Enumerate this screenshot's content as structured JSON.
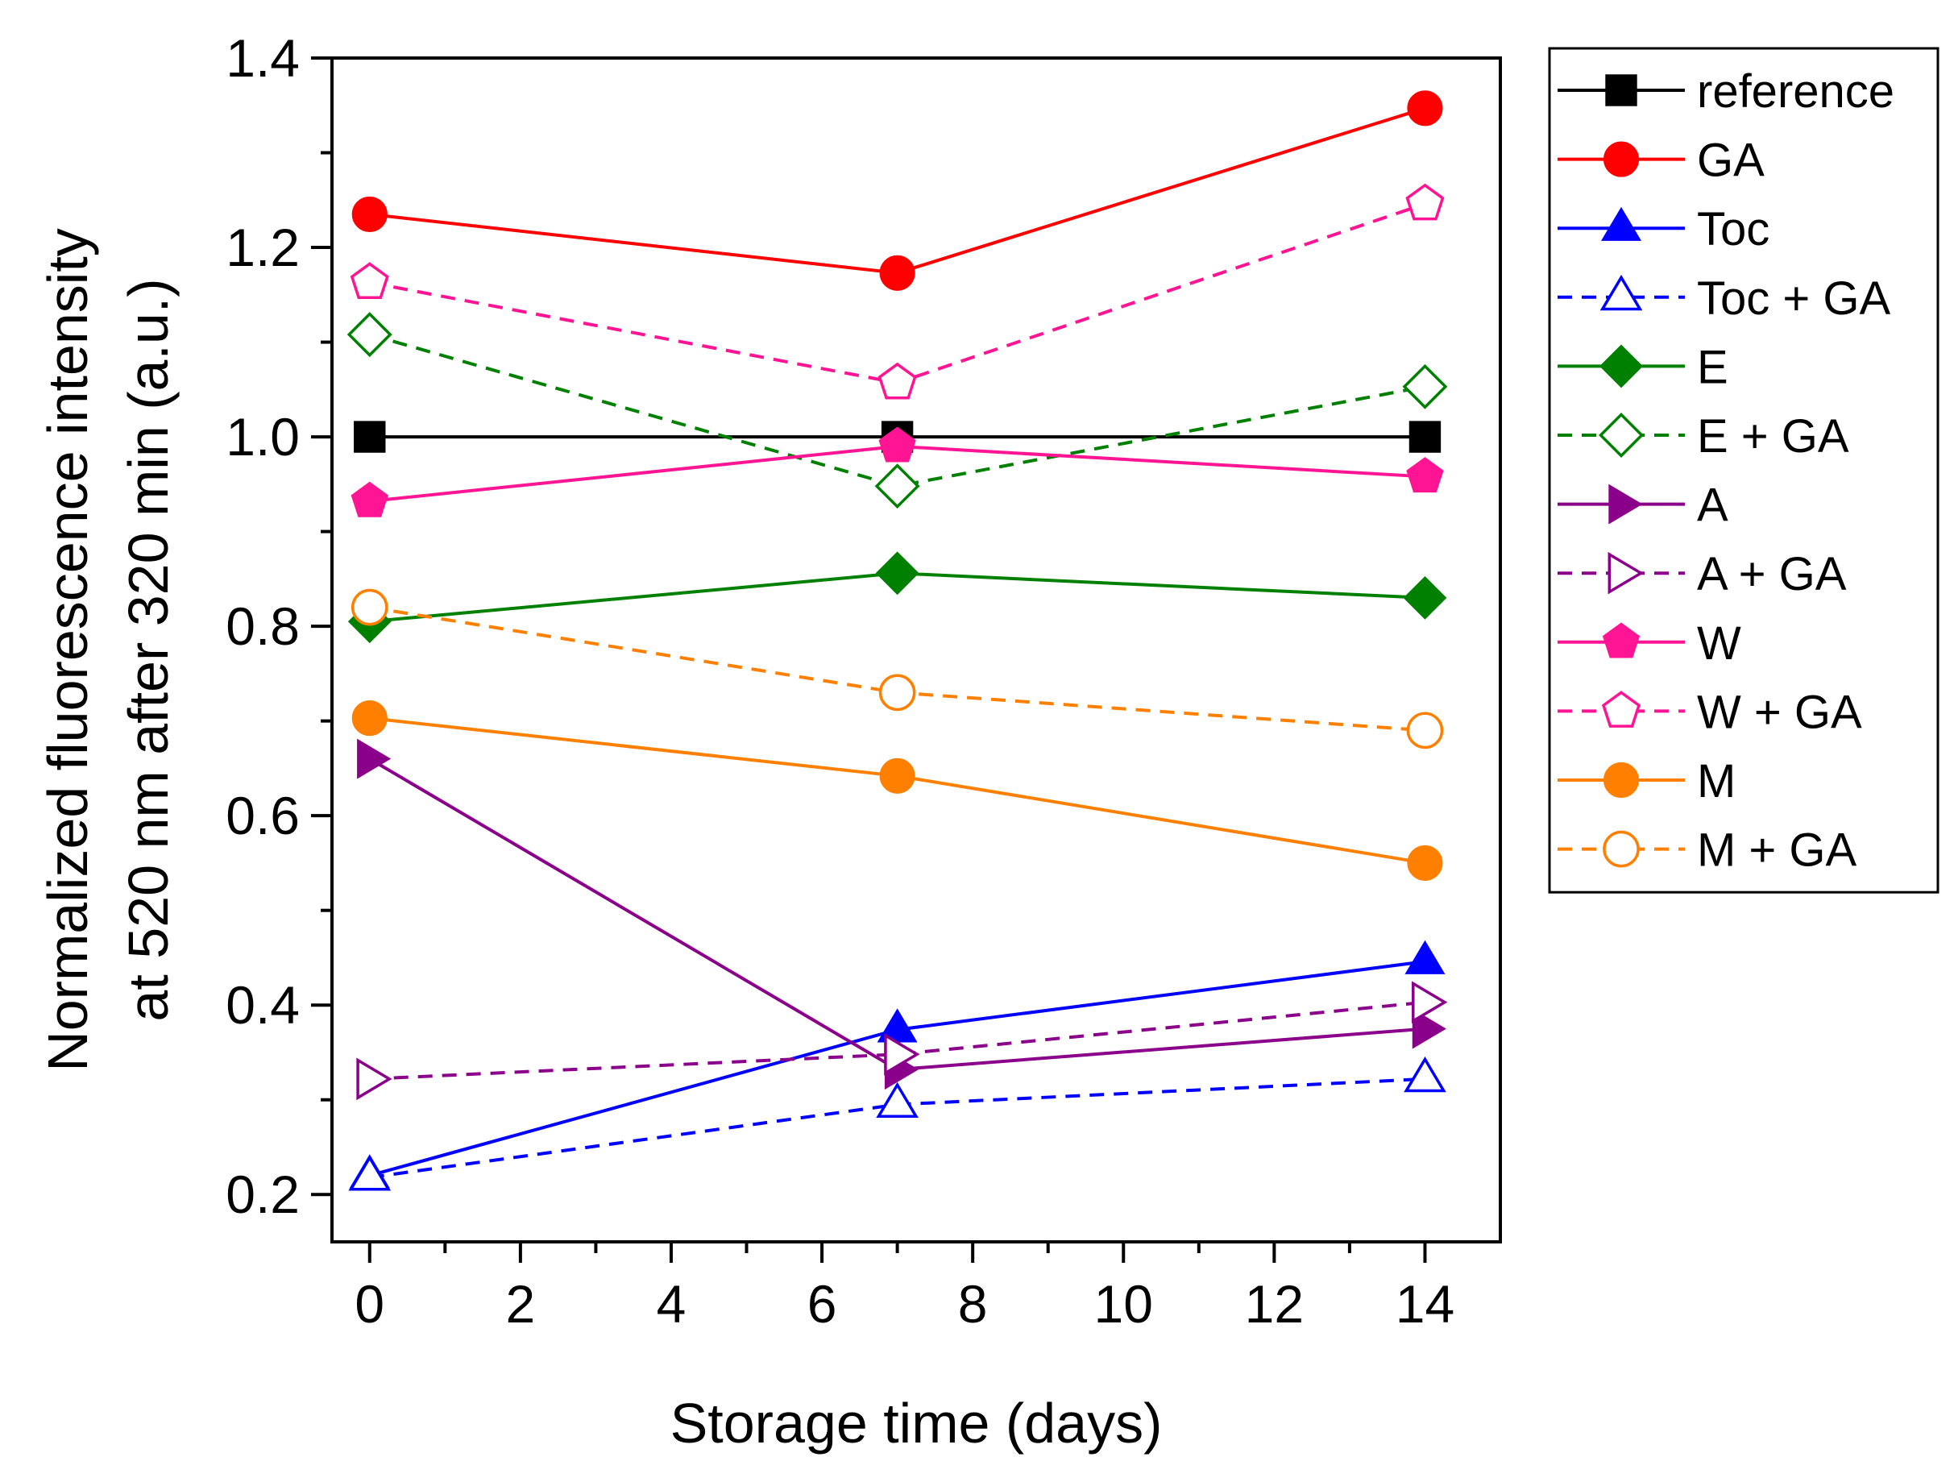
{
  "chart_data": {
    "type": "line",
    "title": "",
    "xlabel": "Storage time (days)",
    "ylabel_lines": [
      "Normalized fluorescence intensity",
      "at 520 nm after 320 min (a.u.)"
    ],
    "xlim": [
      -0.5,
      15
    ],
    "ylim": [
      0.15,
      1.4
    ],
    "xticks": [
      0,
      2,
      4,
      6,
      8,
      10,
      12,
      14
    ],
    "xtick_labels": [
      "0",
      "2",
      "4",
      "6",
      "8",
      "10",
      "12",
      "14"
    ],
    "yticks": [
      0.2,
      0.4,
      0.6,
      0.8,
      1.0,
      1.2,
      1.4
    ],
    "ytick_labels": [
      "0.2",
      "0.4",
      "0.6",
      "0.8",
      "1.0",
      "1.2",
      "1.4"
    ],
    "x": [
      0,
      7,
      14
    ],
    "legend_position": "outside-right",
    "series": [
      {
        "name": "reference",
        "color": "#000000",
        "marker": "square",
        "filled": true,
        "dashed": false,
        "values": [
          1.0,
          1.0,
          1.0
        ]
      },
      {
        "name": "GA",
        "color": "#ff0000",
        "marker": "circle",
        "filled": true,
        "dashed": false,
        "values": [
          1.235,
          1.173,
          1.347
        ]
      },
      {
        "name": "Toc",
        "color": "#0000ff",
        "marker": "triangle-up",
        "filled": true,
        "dashed": false,
        "values": [
          0.22,
          0.374,
          0.446
        ]
      },
      {
        "name": "Toc + GA",
        "color": "#0000ff",
        "marker": "triangle-up",
        "filled": false,
        "dashed": true,
        "values": [
          0.218,
          0.295,
          0.322
        ]
      },
      {
        "name": "E",
        "color": "#008000",
        "marker": "diamond",
        "filled": true,
        "dashed": false,
        "values": [
          0.805,
          0.856,
          0.83
        ]
      },
      {
        "name": "E + GA",
        "color": "#008000",
        "marker": "diamond",
        "filled": false,
        "dashed": true,
        "values": [
          1.108,
          0.948,
          1.053
        ]
      },
      {
        "name": "A",
        "color": "#8b008b",
        "marker": "triangle-right",
        "filled": true,
        "dashed": false,
        "values": [
          0.66,
          0.332,
          0.375
        ]
      },
      {
        "name": "A + GA",
        "color": "#8b008b",
        "marker": "triangle-right",
        "filled": false,
        "dashed": true,
        "values": [
          0.322,
          0.348,
          0.403
        ]
      },
      {
        "name": "W",
        "color": "#ff1493",
        "marker": "pentagon",
        "filled": true,
        "dashed": false,
        "values": [
          0.932,
          0.99,
          0.958
        ]
      },
      {
        "name": "W + GA",
        "color": "#ff1493",
        "marker": "pentagon",
        "filled": false,
        "dashed": true,
        "values": [
          1.163,
          1.057,
          1.246
        ]
      },
      {
        "name": "M",
        "color": "#ff8000",
        "marker": "circle",
        "filled": true,
        "dashed": false,
        "values": [
          0.703,
          0.642,
          0.55
        ]
      },
      {
        "name": "M + GA",
        "color": "#ff8000",
        "marker": "circle",
        "filled": false,
        "dashed": true,
        "values": [
          0.82,
          0.73,
          0.69
        ]
      }
    ]
  }
}
